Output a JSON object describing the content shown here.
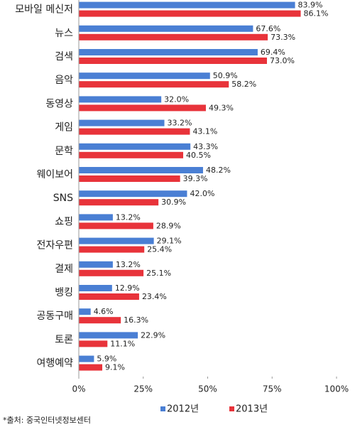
{
  "chart_data": {
    "type": "bar",
    "orientation": "horizontal",
    "categories": [
      "모바일 메신저",
      "뉴스",
      "검색",
      "음악",
      "동영상",
      "게임",
      "문학",
      "웨이보어",
      "SNS",
      "쇼핑",
      "전자우편",
      "결제",
      "뱅킹",
      "공동구매",
      "토론",
      "여행예약"
    ],
    "series": [
      {
        "name": "2012년",
        "color": "#4a7fd4",
        "values": [
          83.9,
          67.6,
          69.4,
          50.9,
          32.0,
          33.2,
          43.3,
          48.2,
          42.0,
          13.2,
          29.1,
          13.2,
          12.9,
          4.6,
          22.9,
          5.9
        ],
        "value_labels": [
          "83.9%",
          "67.6%",
          "69.4%",
          "50.9%",
          "32.0%",
          "33.2%",
          "43.3%",
          "48.2%",
          "42.0%",
          "13.2%",
          "29.1%",
          "13.2%",
          "12.9%",
          "4.6%",
          "22.9%",
          "5.9%"
        ]
      },
      {
        "name": "2013년",
        "color": "#e8333a",
        "values": [
          86.1,
          73.3,
          73.0,
          58.2,
          49.3,
          43.1,
          40.5,
          39.3,
          30.9,
          28.9,
          25.4,
          25.1,
          23.4,
          16.3,
          11.1,
          9.1
        ],
        "value_labels": [
          "86.1%",
          "73.3%",
          "73.0%",
          "58.2%",
          "49.3%",
          "43.1%",
          "40.5%",
          "39.3%",
          "30.9%",
          "28.9%",
          "25.4%",
          "25.1%",
          "23.4%",
          "16.3%",
          "11.1%",
          "9.1%"
        ]
      }
    ],
    "xlim": [
      0,
      100
    ],
    "xticks": [
      {
        "value": 0,
        "label": "0%"
      },
      {
        "value": 25,
        "label": "25%"
      },
      {
        "value": 50,
        "label": "50%"
      },
      {
        "value": 75,
        "label": "75%"
      },
      {
        "value": 100,
        "label": "100%"
      }
    ],
    "grid": false,
    "legend": "bottom",
    "source": "*출처: 중국인터넷정보센터"
  }
}
